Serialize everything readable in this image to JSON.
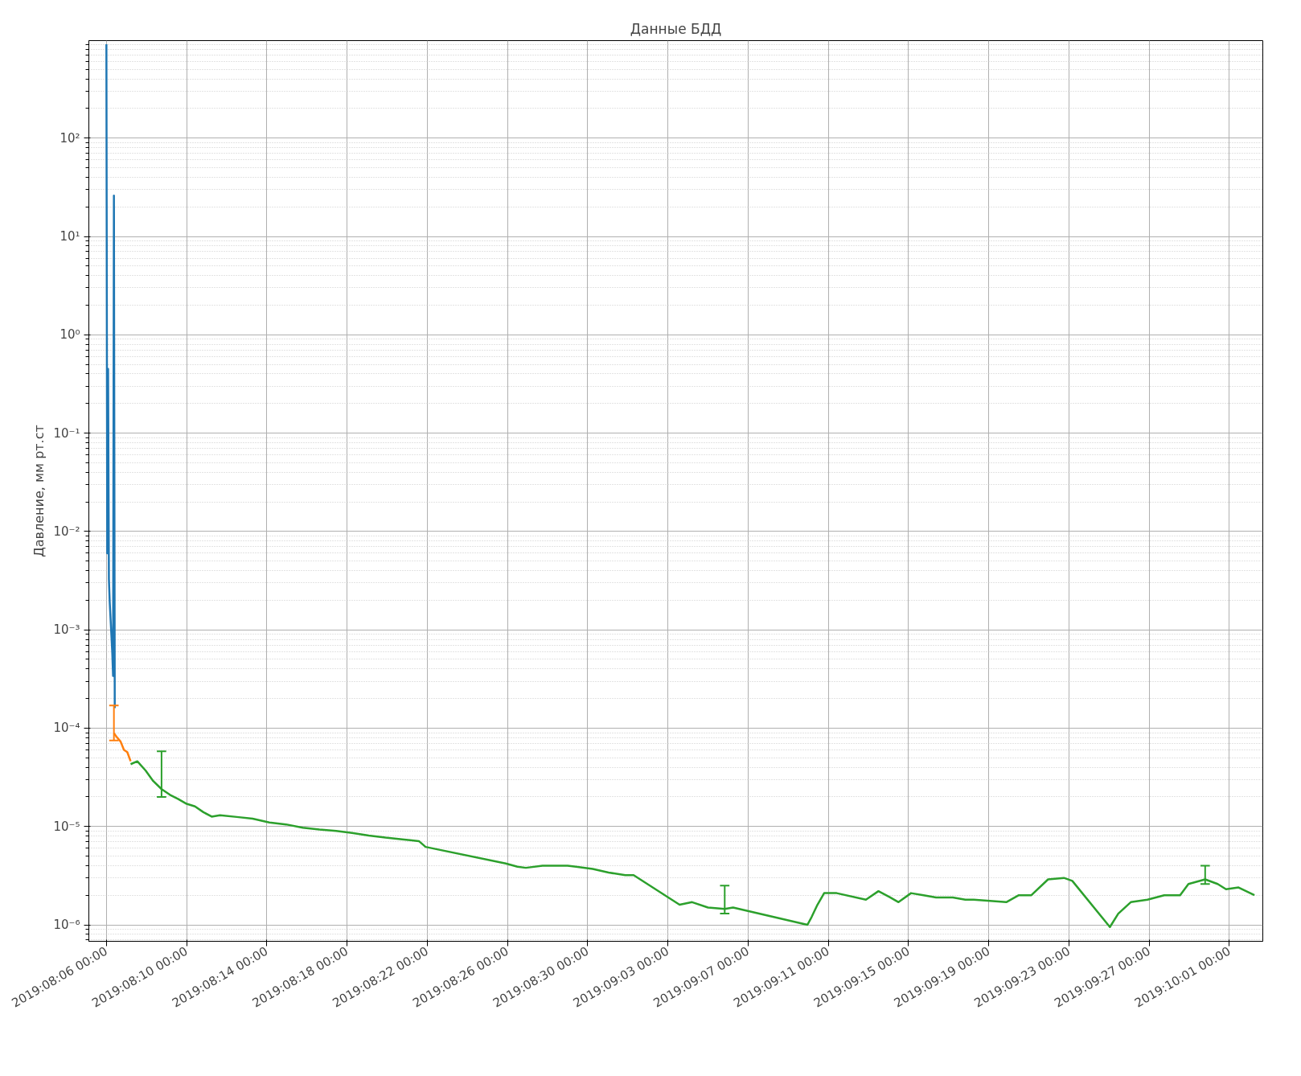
{
  "chart_data": {
    "type": "line",
    "title": "Данные БДД",
    "ylabel": "Давление, мм рт.ст",
    "log": "y",
    "grid": true,
    "marker": "none",
    "line_style": "solid",
    "xlim": [
      "2019-08-05T03:00",
      "2019-10-02T16:00"
    ],
    "ylim": [
      6.8e-07,
      980
    ],
    "xticks": [
      {
        "value": "2019-08-06",
        "label": "2019:08:06 00:00"
      },
      {
        "value": "2019-08-10",
        "label": "2019:08:10 00:00"
      },
      {
        "value": "2019-08-14",
        "label": "2019:08:14 00:00"
      },
      {
        "value": "2019-08-18",
        "label": "2019:08:18 00:00"
      },
      {
        "value": "2019-08-22",
        "label": "2019:08:22 00:00"
      },
      {
        "value": "2019-08-26",
        "label": "2019:08:26 00:00"
      },
      {
        "value": "2019-08-30",
        "label": "2019:08:30 00:00"
      },
      {
        "value": "2019-09-03",
        "label": "2019:09:03 00:00"
      },
      {
        "value": "2019-09-07",
        "label": "2019:09:07 00:00"
      },
      {
        "value": "2019-09-11",
        "label": "2019:09:11 00:00"
      },
      {
        "value": "2019-09-15",
        "label": "2019:09:15 00:00"
      },
      {
        "value": "2019-09-19",
        "label": "2019:09:19 00:00"
      },
      {
        "value": "2019-09-23",
        "label": "2019:09:23 00:00"
      },
      {
        "value": "2019-09-27",
        "label": "2019:09:27 00:00"
      },
      {
        "value": "2019-10-01",
        "label": "2019:10:01 00:00"
      }
    ],
    "yticks": [
      {
        "value": 1e-06,
        "label": "10⁻⁶"
      },
      {
        "value": 1e-05,
        "label": "10⁻⁵"
      },
      {
        "value": 0.0001,
        "label": "10⁻⁴"
      },
      {
        "value": 0.001,
        "label": "10⁻³"
      },
      {
        "value": 0.01,
        "label": "10⁻²"
      },
      {
        "value": 0.1,
        "label": "10⁻¹"
      },
      {
        "value": 1,
        "label": "10⁰"
      },
      {
        "value": 10,
        "label": "10¹"
      },
      {
        "value": 100,
        "label": "10²"
      }
    ],
    "series": [
      {
        "color": "#1f77b4",
        "x": [
          "2019-08-06T00:00",
          "2019-08-06T01:00",
          "2019-08-06T02:00",
          "2019-08-06T03:00",
          "2019-08-06T04:00",
          "2019-08-06T07:00",
          "2019-08-06T08:00",
          "2019-08-06T09:00",
          "2019-08-06T10:00"
        ],
        "values": [
          900,
          0.006,
          0.45,
          0.0033,
          0.0019,
          0.0006,
          0.00034,
          26,
          0.00016
        ]
      },
      {
        "color": "#ff7f0e",
        "x": [
          "2019-08-06T09:00",
          "2019-08-06T12:00",
          "2019-08-06T17:00",
          "2019-08-06T21:00",
          "2019-08-07T01:00",
          "2019-08-07T05:00"
        ],
        "values": [
          8.9e-05,
          8.2e-05,
          7.3e-05,
          6e-05,
          5.7e-05,
          4.6e-05
        ],
        "errors": [
          [
            7.5e-05,
            0.00017
          ],
          null,
          null,
          null,
          null,
          null
        ]
      },
      {
        "color": "#2ca02c",
        "x": [
          "2019-08-07T05:00",
          "2019-08-07T13:00",
          "2019-08-07T23:00",
          "2019-08-08T08:00",
          "2019-08-08T18:00",
          "2019-08-09T04:00",
          "2019-08-09T14:00",
          "2019-08-10T00:00",
          "2019-08-10T10:00",
          "2019-08-10T20:00",
          "2019-08-11T06:00",
          "2019-08-11T16:00",
          "2019-08-12T12:00",
          "2019-08-13T07:00",
          "2019-08-14T03:00",
          "2019-08-14T23:00",
          "2019-08-15T19:00",
          "2019-08-16T15:00",
          "2019-08-17T11:00",
          "2019-08-18T06:00",
          "2019-08-19T02:00",
          "2019-08-19T22:00",
          "2019-08-20T18:00",
          "2019-08-21T14:00",
          "2019-08-21T22:00",
          "2019-08-25T22:00",
          "2019-08-26T12:00",
          "2019-08-26T22:00",
          "2019-08-27T18:00",
          "2019-08-29T00:00",
          "2019-08-29T10:00",
          "2019-08-30T06:00",
          "2019-08-31T01:00",
          "2019-08-31T21:00",
          "2019-09-01T07:00",
          "2019-09-03T14:00",
          "2019-09-04T05:00",
          "2019-09-05T00:00",
          "2019-09-05T20:00",
          "2019-09-06T06:00",
          "2019-09-09T23:00",
          "2019-09-10T04:00",
          "2019-09-10T11:00",
          "2019-09-10T19:00",
          "2019-09-11T10:00",
          "2019-09-12T21:00",
          "2019-09-13T12:00",
          "2019-09-14T02:00",
          "2019-09-14T12:00",
          "2019-09-15T03:00",
          "2019-09-15T18:00",
          "2019-09-16T09:00",
          "2019-09-17T05:00",
          "2019-09-17T20:00",
          "2019-09-18T06:00",
          "2019-09-19T21:00",
          "2019-09-20T12:00",
          "2019-09-21T03:00",
          "2019-09-21T23:00",
          "2019-09-22T18:00",
          "2019-09-23T04:00",
          "2019-09-25T01:00",
          "2019-09-25T11:00",
          "2019-09-26T02:00",
          "2019-09-26T22:00",
          "2019-09-27T18:00",
          "2019-09-28T13:00",
          "2019-09-28T23:00",
          "2019-09-29T19:00",
          "2019-09-30T10:00",
          "2019-09-30T20:00",
          "2019-10-01T11:00",
          "2019-10-02T06:00"
        ],
        "values": [
          4.3e-05,
          4.6e-05,
          3.7e-05,
          2.9e-05,
          2.4e-05,
          2.1e-05,
          1.9e-05,
          1.7e-05,
          1.6e-05,
          1.4e-05,
          1.26e-05,
          1.3e-05,
          1.25e-05,
          1.2e-05,
          1.1e-05,
          1.05e-05,
          9.7e-06,
          9.3e-06,
          9e-06,
          8.6e-06,
          8.1e-06,
          7.7e-06,
          7.4e-06,
          7.1e-06,
          6.2e-06,
          4.2e-06,
          3.9e-06,
          3.8e-06,
          4e-06,
          4e-06,
          3.9e-06,
          3.7e-06,
          3.4e-06,
          3.2e-06,
          3.2e-06,
          1.6e-06,
          1.7e-06,
          1.5e-06,
          1.45e-06,
          1.5e-06,
          1e-06,
          1.2e-06,
          1.6e-06,
          2.1e-06,
          2.1e-06,
          1.8e-06,
          2.2e-06,
          1.9e-06,
          1.7e-06,
          2.1e-06,
          2e-06,
          1.9e-06,
          1.9e-06,
          1.8e-06,
          1.8e-06,
          1.7e-06,
          2e-06,
          2e-06,
          2.9e-06,
          3e-06,
          2.8e-06,
          9.5e-07,
          1.3e-06,
          1.7e-06,
          1.8e-06,
          2e-06,
          2e-06,
          2.6e-06,
          2.9e-06,
          2.6e-06,
          2.3e-06,
          2.4e-06,
          2e-06
        ],
        "errors": [
          null,
          null,
          null,
          null,
          [
            2e-05,
            5.8e-05
          ],
          null,
          null,
          null,
          null,
          null,
          null,
          null,
          null,
          null,
          null,
          null,
          null,
          null,
          null,
          null,
          null,
          null,
          null,
          null,
          null,
          null,
          null,
          null,
          null,
          null,
          null,
          null,
          null,
          null,
          null,
          null,
          null,
          null,
          [
            1.3e-06,
            2.5e-06
          ],
          null,
          null,
          null,
          null,
          null,
          null,
          null,
          null,
          null,
          null,
          null,
          null,
          null,
          null,
          null,
          null,
          null,
          null,
          null,
          null,
          null,
          null,
          null,
          null,
          null,
          null,
          null,
          null,
          null,
          [
            2.6e-06,
            4e-06
          ],
          null,
          null,
          null,
          null
        ]
      }
    ]
  }
}
